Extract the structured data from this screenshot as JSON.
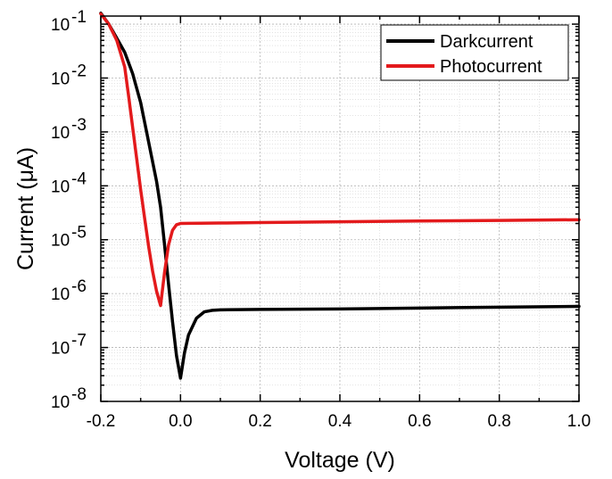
{
  "chart_data": {
    "type": "line",
    "xlabel": "Voltage (V)",
    "ylabel": "Current (μA)",
    "xlim": [
      -0.2,
      1.0
    ],
    "ylim_log10": [
      -8,
      -0.85
    ],
    "y_scale": "log",
    "grid": true,
    "legend_position": "top-right",
    "x_ticks": [
      {
        "value": -0.2,
        "label": "-0.2"
      },
      {
        "value": 0.0,
        "label": "0.0"
      },
      {
        "value": 0.2,
        "label": "0.2"
      },
      {
        "value": 0.4,
        "label": "0.4"
      },
      {
        "value": 0.6,
        "label": "0.6"
      },
      {
        "value": 0.8,
        "label": "0.8"
      },
      {
        "value": 1.0,
        "label": "1.0"
      }
    ],
    "y_ticks": [
      {
        "exp": -8,
        "base": "10",
        "sup": "-8"
      },
      {
        "exp": -7,
        "base": "10",
        "sup": "-7"
      },
      {
        "exp": -6,
        "base": "10",
        "sup": "-6"
      },
      {
        "exp": -5,
        "base": "10",
        "sup": "-5"
      },
      {
        "exp": -4,
        "base": "10",
        "sup": "-4"
      },
      {
        "exp": -3,
        "base": "10",
        "sup": "-3"
      },
      {
        "exp": -2,
        "base": "10",
        "sup": "-2"
      },
      {
        "exp": -1,
        "base": "10",
        "sup": "-1"
      }
    ],
    "series": [
      {
        "name": "Darkcurrent",
        "color": "#000000",
        "x": [
          -0.2,
          -0.18,
          -0.16,
          -0.14,
          -0.12,
          -0.1,
          -0.08,
          -0.06,
          -0.05,
          -0.04,
          -0.03,
          -0.02,
          -0.01,
          0.0,
          0.01,
          0.02,
          0.04,
          0.06,
          0.08,
          0.1,
          0.2,
          0.4,
          0.6,
          0.8,
          1.0
        ],
        "y": [
          0.16,
          0.1,
          0.055,
          0.03,
          0.012,
          0.0035,
          0.00065,
          0.00012,
          4e-05,
          8e-06,
          1.5e-06,
          3e-07,
          7e-08,
          2.7e-08,
          8e-08,
          1.7e-07,
          3.5e-07,
          4.6e-07,
          4.9e-07,
          5e-07,
          5.1e-07,
          5.2e-07,
          5.4e-07,
          5.6e-07,
          5.8e-07
        ]
      },
      {
        "name": "Photocurrent",
        "color": "#e31a1c",
        "x": [
          -0.2,
          -0.18,
          -0.16,
          -0.14,
          -0.13,
          -0.12,
          -0.11,
          -0.1,
          -0.09,
          -0.08,
          -0.07,
          -0.06,
          -0.05,
          -0.04,
          -0.03,
          -0.02,
          -0.01,
          0.0,
          0.02,
          0.05,
          0.1,
          0.2,
          0.4,
          0.6,
          0.8,
          1.0
        ],
        "y": [
          0.155,
          0.1,
          0.05,
          0.016,
          0.0045,
          0.0012,
          0.00032,
          8.5e-05,
          2.5e-05,
          7.5e-06,
          2.6e-06,
          1.1e-06,
          6e-07,
          2.5e-06,
          8e-06,
          1.5e-05,
          1.9e-05,
          2e-05,
          2.01e-05,
          2.02e-05,
          2.04e-05,
          2.08e-05,
          2.15e-05,
          2.22e-05,
          2.28e-05,
          2.35e-05
        ]
      }
    ]
  }
}
